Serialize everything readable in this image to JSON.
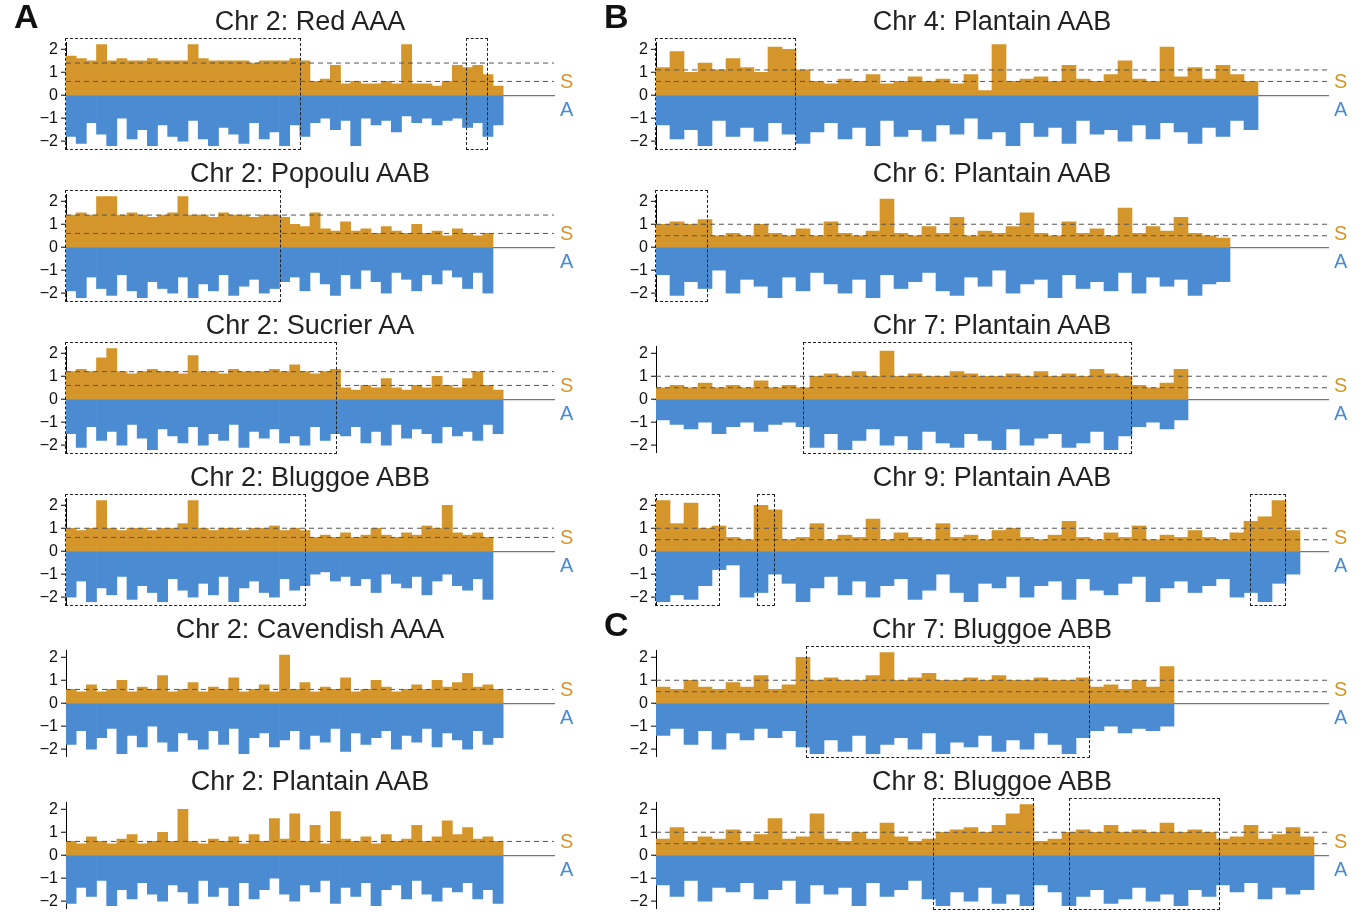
{
  "chart_data": [
    {
      "type": "bar",
      "title": "Chr 2: Red AAA",
      "annotations": [
        "A"
      ],
      "stacked": true,
      "ylim": [
        -2.3,
        2.3
      ],
      "yticks": [
        -2,
        -1,
        0,
        1,
        2
      ],
      "categories": [
        null,
        null,
        null,
        null,
        null,
        null,
        null,
        null,
        null,
        null,
        null,
        null,
        null,
        null,
        null,
        null,
        null,
        null,
        null,
        null,
        null,
        null,
        null,
        null,
        null,
        null,
        null,
        null,
        null,
        null,
        null,
        null,
        null,
        null,
        null,
        null,
        null,
        null,
        null,
        null,
        null,
        null,
        null,
        null,
        null,
        null,
        null,
        null
      ],
      "series": [
        {
          "name": "S",
          "color": "#d4962a",
          "values": [
            1.7,
            1.6,
            1.5,
            2.2,
            1.5,
            1.6,
            1.5,
            1.5,
            1.6,
            1.5,
            1.5,
            1.5,
            2.2,
            1.6,
            1.5,
            1.5,
            1.5,
            1.5,
            1.4,
            1.5,
            1.5,
            1.5,
            1.6,
            1.5,
            0.6,
            0.7,
            1.3,
            0.5,
            0.6,
            0.5,
            0.5,
            0.6,
            0.5,
            2.2,
            0.5,
            0.5,
            0.4,
            0.6,
            1.3,
            1.2,
            1.3,
            0.9,
            0.4,
            null,
            null,
            null,
            null,
            null
          ]
        },
        {
          "name": "A",
          "color": "#4a8bd1",
          "values": [
            -1.8,
            -2.1,
            -1.2,
            -1.7,
            -2.2,
            -1.0,
            -1.9,
            -1.5,
            -2.2,
            -1.3,
            -1.8,
            -2.0,
            -1.1,
            -1.9,
            -2.2,
            -1.4,
            -1.7,
            -2.1,
            -1.2,
            -1.9,
            -1.6,
            -2.2,
            -1.3,
            -1.8,
            -1.2,
            -1.0,
            -1.5,
            -1.1,
            -2.2,
            -1.0,
            -1.3,
            -1.1,
            -1.6,
            -0.9,
            -1.2,
            -1.0,
            -1.3,
            -1.1,
            -1.0,
            -1.4,
            -1.2,
            -1.8,
            -1.3,
            null,
            null,
            null,
            null,
            null
          ]
        }
      ],
      "ref_lines": [
        {
          "axis": "y",
          "value": 1.4,
          "color": "#555555",
          "line_style": "dashed"
        },
        {
          "axis": "y",
          "value": 0.6,
          "color": "#555555",
          "line_style": "dashed"
        }
      ],
      "legend": false
    },
    {
      "type": "bar",
      "title": "Chr 2: Popoulu AAB",
      "stacked": true,
      "ylim": [
        -2.3,
        2.3
      ],
      "yticks": [
        -2,
        -1,
        0,
        1,
        2
      ],
      "categories": [
        null,
        null,
        null,
        null,
        null,
        null,
        null,
        null,
        null,
        null,
        null,
        null,
        null,
        null,
        null,
        null,
        null,
        null,
        null,
        null,
        null,
        null,
        null,
        null,
        null,
        null,
        null,
        null,
        null,
        null,
        null,
        null,
        null,
        null,
        null,
        null,
        null,
        null,
        null,
        null,
        null,
        null,
        null,
        null,
        null,
        null,
        null,
        null
      ],
      "series": [
        {
          "name": "S",
          "color": "#d4962a",
          "values": [
            1.4,
            1.5,
            1.4,
            2.2,
            2.2,
            1.4,
            1.5,
            1.4,
            1.3,
            1.4,
            1.5,
            2.2,
            1.4,
            1.4,
            1.3,
            1.5,
            1.4,
            1.4,
            1.3,
            1.4,
            1.4,
            1.3,
            1.0,
            0.9,
            1.5,
            0.8,
            0.7,
            1.1,
            0.7,
            0.8,
            0.6,
            0.9,
            0.7,
            0.6,
            1.0,
            0.6,
            0.7,
            0.5,
            0.8,
            0.6,
            0.5,
            0.6,
            null,
            null,
            null,
            null,
            null,
            null
          ]
        },
        {
          "name": "A",
          "color": "#4a8bd1",
          "values": [
            -1.9,
            -2.2,
            -1.3,
            -1.8,
            -2.1,
            -1.2,
            -1.9,
            -2.2,
            -1.5,
            -1.8,
            -2.0,
            -1.3,
            -2.2,
            -1.6,
            -1.9,
            -1.2,
            -2.1,
            -1.7,
            -1.4,
            -2.0,
            -1.8,
            -1.5,
            -1.3,
            -1.9,
            -1.1,
            -1.6,
            -2.1,
            -1.2,
            -1.8,
            -1.0,
            -1.5,
            -2.0,
            -1.1,
            -1.4,
            -1.9,
            -1.2,
            -1.6,
            -1.0,
            -1.3,
            -1.8,
            -1.1,
            -2.0,
            null,
            null,
            null,
            null,
            null,
            null
          ]
        }
      ],
      "ref_lines": [
        {
          "axis": "y",
          "value": 1.4,
          "color": "#555555",
          "line_style": "dashed"
        },
        {
          "axis": "y",
          "value": 0.6,
          "color": "#555555",
          "line_style": "dashed"
        }
      ],
      "legend": false
    },
    {
      "type": "bar",
      "title": "Chr 2: Sucrier AA",
      "stacked": true,
      "ylim": [
        -2.3,
        2.3
      ],
      "yticks": [
        -2,
        -1,
        0,
        1,
        2
      ],
      "categories": [
        null,
        null,
        null,
        null,
        null,
        null,
        null,
        null,
        null,
        null,
        null,
        null,
        null,
        null,
        null,
        null,
        null,
        null,
        null,
        null,
        null,
        null,
        null,
        null,
        null,
        null,
        null,
        null,
        null,
        null,
        null,
        null,
        null,
        null,
        null,
        null,
        null,
        null,
        null,
        null,
        null,
        null,
        null,
        null,
        null,
        null,
        null,
        null
      ],
      "series": [
        {
          "name": "S",
          "color": "#d4962a",
          "values": [
            1.2,
            1.3,
            1.2,
            1.8,
            2.2,
            1.2,
            1.1,
            1.2,
            1.3,
            1.2,
            1.2,
            1.1,
            1.9,
            1.2,
            1.2,
            1.1,
            1.3,
            1.2,
            1.2,
            1.2,
            1.3,
            1.2,
            1.5,
            1.2,
            1.1,
            1.2,
            1.3,
            0.5,
            0.4,
            0.6,
            0.5,
            0.9,
            0.5,
            0.4,
            0.6,
            0.5,
            1.0,
            0.6,
            0.5,
            0.9,
            1.2,
            0.6,
            0.4,
            null,
            null,
            null,
            null,
            null
          ]
        },
        {
          "name": "A",
          "color": "#4a8bd1",
          "values": [
            -1.5,
            -2.1,
            -1.2,
            -1.8,
            -1.4,
            -2.0,
            -1.1,
            -1.7,
            -2.2,
            -1.3,
            -1.6,
            -1.9,
            -1.2,
            -2.0,
            -1.5,
            -1.8,
            -1.1,
            -2.1,
            -1.4,
            -1.7,
            -1.3,
            -1.9,
            -1.6,
            -2.0,
            -1.2,
            -1.8,
            -1.5,
            -1.6,
            -1.2,
            -1.9,
            -1.4,
            -2.0,
            -1.1,
            -1.7,
            -1.3,
            -1.5,
            -1.9,
            -1.2,
            -1.6,
            -1.4,
            -1.8,
            -1.1,
            -1.5,
            null,
            null,
            null,
            null,
            null
          ]
        }
      ],
      "ref_lines": [
        {
          "axis": "y",
          "value": 1.2,
          "color": "#555555",
          "line_style": "dashed"
        },
        {
          "axis": "y",
          "value": 0.6,
          "color": "#555555",
          "line_style": "dashed"
        }
      ],
      "legend": false
    },
    {
      "type": "bar",
      "title": "Chr 2: Bluggoe ABB",
      "stacked": true,
      "ylim": [
        -2.3,
        2.3
      ],
      "yticks": [
        -2,
        -1,
        0,
        1,
        2
      ],
      "categories": [
        null,
        null,
        null,
        null,
        null,
        null,
        null,
        null,
        null,
        null,
        null,
        null,
        null,
        null,
        null,
        null,
        null,
        null,
        null,
        null,
        null,
        null,
        null,
        null,
        null,
        null,
        null,
        null,
        null,
        null,
        null,
        null,
        null,
        null,
        null,
        null,
        null,
        null,
        null,
        null,
        null,
        null,
        null,
        null,
        null,
        null,
        null,
        null
      ],
      "series": [
        {
          "name": "S",
          "color": "#d4962a",
          "values": [
            1.0,
            0.9,
            1.0,
            2.2,
            1.0,
            0.9,
            1.0,
            1.0,
            0.9,
            1.0,
            1.0,
            1.2,
            2.2,
            1.0,
            0.9,
            1.0,
            1.0,
            0.9,
            1.0,
            1.0,
            1.1,
            0.9,
            1.0,
            0.9,
            0.6,
            0.7,
            0.6,
            0.8,
            0.6,
            0.7,
            1.0,
            0.7,
            0.6,
            0.8,
            0.7,
            1.1,
            1.0,
            2.0,
            0.8,
            0.7,
            0.8,
            0.6,
            null,
            null,
            null,
            null,
            null,
            null
          ]
        },
        {
          "name": "A",
          "color": "#4a8bd1",
          "values": [
            -2.0,
            -1.3,
            -2.2,
            -1.6,
            -1.9,
            -1.1,
            -2.1,
            -1.5,
            -1.8,
            -2.2,
            -1.2,
            -1.7,
            -2.0,
            -1.4,
            -1.9,
            -1.1,
            -2.2,
            -1.6,
            -1.3,
            -1.8,
            -2.0,
            -1.2,
            -1.7,
            -1.5,
            -1.0,
            -0.9,
            -1.3,
            -1.1,
            -1.5,
            -1.2,
            -1.8,
            -1.0,
            -1.4,
            -1.6,
            -1.1,
            -1.9,
            -1.3,
            -1.0,
            -1.5,
            -1.7,
            -1.2,
            -2.1,
            null,
            null,
            null,
            null,
            null,
            null
          ]
        }
      ],
      "ref_lines": [
        {
          "axis": "y",
          "value": 1.0,
          "color": "#555555",
          "line_style": "dashed"
        },
        {
          "axis": "y",
          "value": 0.6,
          "color": "#555555",
          "line_style": "dashed"
        }
      ],
      "legend": false
    },
    {
      "type": "bar",
      "title": "Chr 2: Cavendish AAA",
      "stacked": true,
      "ylim": [
        -2.3,
        2.3
      ],
      "yticks": [
        -2,
        -1,
        0,
        1,
        2
      ],
      "categories": [
        null,
        null,
        null,
        null,
        null,
        null,
        null,
        null,
        null,
        null,
        null,
        null,
        null,
        null,
        null,
        null,
        null,
        null,
        null,
        null,
        null,
        null,
        null,
        null,
        null,
        null,
        null,
        null,
        null,
        null,
        null,
        null,
        null,
        null,
        null,
        null,
        null,
        null,
        null,
        null,
        null,
        null,
        null,
        null,
        null,
        null,
        null,
        null
      ],
      "series": [
        {
          "name": "S",
          "color": "#d4962a",
          "values": [
            0.6,
            0.5,
            0.8,
            0.5,
            0.6,
            1.0,
            0.5,
            0.7,
            0.6,
            1.2,
            0.5,
            0.6,
            0.9,
            0.5,
            0.7,
            0.6,
            1.1,
            0.5,
            0.6,
            0.8,
            0.5,
            2.1,
            0.6,
            0.9,
            0.5,
            0.7,
            0.6,
            1.1,
            0.5,
            0.6,
            1.0,
            0.7,
            0.5,
            0.6,
            0.8,
            0.6,
            1.0,
            0.7,
            0.9,
            1.3,
            0.7,
            0.8,
            0.6,
            null,
            null,
            null,
            null,
            null
          ]
        },
        {
          "name": "A",
          "color": "#4a8bd1",
          "values": [
            -1.8,
            -1.2,
            -2.0,
            -1.5,
            -1.1,
            -2.2,
            -1.4,
            -1.9,
            -1.0,
            -1.7,
            -2.1,
            -1.3,
            -1.6,
            -2.0,
            -1.2,
            -1.8,
            -1.1,
            -2.2,
            -1.5,
            -1.3,
            -1.9,
            -1.6,
            -1.2,
            -2.0,
            -1.4,
            -1.7,
            -1.1,
            -2.1,
            -1.3,
            -1.8,
            -1.5,
            -1.2,
            -2.0,
            -1.4,
            -1.7,
            -1.1,
            -1.9,
            -1.3,
            -1.6,
            -2.0,
            -1.2,
            -1.8,
            -1.5,
            null,
            null,
            null,
            null,
            null
          ]
        }
      ],
      "ref_lines": [
        {
          "axis": "y",
          "value": 0.6,
          "color": "#555555",
          "line_style": "dashed"
        }
      ]
    },
    {
      "type": "bar",
      "title": "Chr 2: Plantain AAB",
      "stacked": true,
      "ylim": [
        -2.3,
        2.3
      ],
      "yticks": [
        -2,
        -1,
        0,
        1,
        2
      ],
      "categories": [
        null,
        null,
        null,
        null,
        null,
        null,
        null,
        null,
        null,
        null,
        null,
        null,
        null,
        null,
        null,
        null,
        null,
        null,
        null,
        null,
        null,
        null,
        null,
        null,
        null,
        null,
        null,
        null,
        null,
        null,
        null,
        null,
        null,
        null,
        null,
        null,
        null,
        null,
        null,
        null,
        null,
        null,
        null,
        null,
        null,
        null,
        null,
        null
      ],
      "series": [
        {
          "name": "S",
          "color": "#d4962a",
          "values": [
            0.6,
            0.5,
            0.8,
            0.6,
            0.5,
            0.7,
            0.9,
            0.5,
            0.6,
            1.0,
            0.6,
            2.0,
            0.6,
            0.5,
            0.7,
            0.6,
            0.8,
            0.5,
            0.9,
            0.6,
            1.6,
            0.7,
            1.8,
            0.6,
            1.3,
            0.5,
            1.9,
            0.7,
            0.6,
            0.8,
            0.5,
            0.9,
            0.6,
            0.7,
            1.3,
            0.6,
            0.8,
            1.5,
            0.9,
            1.2,
            0.7,
            0.8,
            0.6,
            null,
            null,
            null,
            null,
            null
          ]
        },
        {
          "name": "A",
          "color": "#4a8bd1",
          "values": [
            -2.1,
            -1.4,
            -1.8,
            -1.1,
            -2.2,
            -1.5,
            -1.9,
            -1.2,
            -1.7,
            -2.0,
            -1.3,
            -1.6,
            -2.1,
            -1.1,
            -1.8,
            -1.4,
            -2.2,
            -1.2,
            -1.9,
            -1.5,
            -1.0,
            -1.7,
            -2.0,
            -1.3,
            -1.6,
            -1.1,
            -2.1,
            -1.4,
            -1.8,
            -1.2,
            -2.2,
            -1.5,
            -1.3,
            -1.9,
            -1.1,
            -1.7,
            -2.0,
            -1.4,
            -1.6,
            -1.2,
            -1.9,
            -1.5,
            -2.1,
            null,
            null,
            null,
            null,
            null
          ]
        }
      ],
      "ref_lines": [
        {
          "axis": "y",
          "value": 0.6,
          "color": "#555555",
          "line_style": "dashed"
        }
      ]
    },
    {
      "type": "bar",
      "title": "Chr 4: Plantain AAB",
      "annotations": [
        "B"
      ],
      "stacked": true,
      "ylim": [
        -2.3,
        2.3
      ],
      "yticks": [
        -2,
        -1,
        0,
        1,
        2
      ],
      "categories": [
        null,
        null,
        null,
        null,
        null,
        null,
        null,
        null,
        null,
        null,
        null,
        null,
        null,
        null,
        null,
        null,
        null,
        null,
        null,
        null,
        null,
        null,
        null,
        null,
        null,
        null,
        null,
        null,
        null,
        null,
        null,
        null,
        null,
        null,
        null,
        null,
        null,
        null,
        null,
        null,
        null,
        null,
        null,
        null,
        null,
        null,
        null,
        null
      ],
      "series": [
        {
          "name": "S",
          "color": "#d4962a",
          "values": [
            1.2,
            1.9,
            1.0,
            1.4,
            1.1,
            1.6,
            1.2,
            1.0,
            2.1,
            2.0,
            1.1,
            0.6,
            0.5,
            0.7,
            0.6,
            0.9,
            0.5,
            0.6,
            0.8,
            0.6,
            0.7,
            0.5,
            0.9,
            0.2,
            2.2,
            0.6,
            0.7,
            0.8,
            0.6,
            1.3,
            0.7,
            0.6,
            0.9,
            1.5,
            0.7,
            0.6,
            2.1,
            0.8,
            1.2,
            0.7,
            1.3,
            0.9,
            0.6,
            null,
            null,
            null,
            null,
            null
          ]
        },
        {
          "name": "A",
          "color": "#4a8bd1",
          "values": [
            -1.3,
            -1.9,
            -1.5,
            -2.2,
            -1.1,
            -1.8,
            -1.4,
            -2.0,
            -1.2,
            -1.7,
            -2.1,
            -1.6,
            -1.2,
            -1.9,
            -1.4,
            -2.2,
            -1.1,
            -1.8,
            -1.5,
            -2.0,
            -1.3,
            -1.7,
            -1.0,
            -1.9,
            -1.6,
            -2.2,
            -1.2,
            -1.8,
            -1.4,
            -2.1,
            -1.1,
            -1.7,
            -1.5,
            -2.0,
            -1.3,
            -1.9,
            -1.2,
            -1.6,
            -2.1,
            -1.4,
            -1.8,
            -1.1,
            -1.5,
            null,
            null,
            null,
            null,
            null
          ]
        }
      ],
      "ref_lines": [
        {
          "axis": "y",
          "value": 1.1,
          "color": "#555555",
          "line_style": "dashed"
        },
        {
          "axis": "y",
          "value": 0.6,
          "color": "#555555",
          "line_style": "dashed"
        }
      ],
      "legend": false
    },
    {
      "type": "bar",
      "title": "Chr 6: Plantain AAB",
      "stacked": true,
      "ylim": [
        -2.3,
        2.3
      ],
      "yticks": [
        -2,
        -1,
        0,
        1,
        2
      ],
      "categories": [
        null,
        null,
        null,
        null,
        null,
        null,
        null,
        null,
        null,
        null,
        null,
        null,
        null,
        null,
        null,
        null,
        null,
        null,
        null,
        null,
        null,
        null,
        null,
        null,
        null,
        null,
        null,
        null,
        null,
        null,
        null,
        null,
        null,
        null,
        null,
        null,
        null,
        null,
        null,
        null,
        null,
        null,
        null,
        null,
        null,
        null,
        null,
        null
      ],
      "series": [
        {
          "name": "S",
          "color": "#d4962a",
          "values": [
            1.0,
            1.1,
            1.0,
            1.2,
            0.5,
            0.6,
            0.5,
            1.0,
            0.6,
            0.5,
            0.8,
            0.5,
            1.1,
            0.6,
            0.5,
            0.7,
            2.1,
            0.6,
            0.5,
            0.9,
            0.6,
            1.3,
            0.5,
            0.7,
            0.6,
            0.9,
            1.5,
            0.6,
            0.5,
            1.1,
            0.6,
            0.8,
            0.5,
            1.7,
            0.6,
            0.9,
            0.7,
            1.3,
            0.6,
            0.5,
            0.4,
            null,
            null,
            null,
            null,
            null,
            null,
            null
          ]
        },
        {
          "name": "A",
          "color": "#4a8bd1",
          "values": [
            -1.2,
            -2.1,
            -1.5,
            -1.8,
            -1.0,
            -2.0,
            -1.4,
            -1.7,
            -2.2,
            -1.3,
            -1.9,
            -1.1,
            -1.6,
            -2.0,
            -1.4,
            -2.2,
            -1.2,
            -1.8,
            -1.5,
            -1.1,
            -1.9,
            -2.1,
            -1.3,
            -1.7,
            -1.0,
            -2.0,
            -1.6,
            -1.4,
            -2.2,
            -1.2,
            -1.8,
            -1.5,
            -1.9,
            -1.1,
            -2.0,
            -1.3,
            -1.7,
            -1.4,
            -2.1,
            -1.6,
            -1.5,
            null,
            null,
            null,
            null,
            null,
            null,
            null
          ]
        }
      ],
      "ref_lines": [
        {
          "axis": "y",
          "value": 1.0,
          "color": "#555555",
          "line_style": "dashed"
        },
        {
          "axis": "y",
          "value": 0.5,
          "color": "#555555",
          "line_style": "dashed"
        }
      ],
      "legend": false
    },
    {
      "type": "bar",
      "title": "Chr 7: Plantain AAB",
      "stacked": true,
      "ylim": [
        -2.3,
        2.3
      ],
      "yticks": [
        -2,
        -1,
        0,
        1,
        2
      ],
      "categories": [
        null,
        null,
        null,
        null,
        null,
        null,
        null,
        null,
        null,
        null,
        null,
        null,
        null,
        null,
        null,
        null,
        null,
        null,
        null,
        null,
        null,
        null,
        null,
        null,
        null,
        null,
        null,
        null,
        null,
        null,
        null,
        null,
        null,
        null,
        null,
        null,
        null,
        null,
        null,
        null,
        null,
        null,
        null,
        null,
        null,
        null,
        null,
        null
      ],
      "series": [
        {
          "name": "S",
          "color": "#d4962a",
          "values": [
            0.5,
            0.6,
            0.5,
            0.7,
            0.5,
            0.6,
            0.5,
            0.8,
            0.5,
            0.6,
            0.5,
            1.0,
            1.1,
            1.0,
            1.2,
            1.0,
            2.1,
            1.0,
            1.1,
            1.0,
            1.0,
            1.2,
            1.1,
            1.0,
            1.0,
            1.1,
            1.0,
            1.2,
            1.0,
            1.1,
            1.0,
            1.3,
            1.1,
            1.0,
            0.6,
            0.5,
            0.7,
            1.3,
            null,
            null,
            null,
            null,
            null,
            null,
            null,
            null,
            null,
            null
          ]
        },
        {
          "name": "A",
          "color": "#4a8bd1",
          "values": [
            -0.9,
            -1.1,
            -1.3,
            -1.0,
            -1.5,
            -1.2,
            -1.0,
            -1.4,
            -1.1,
            -1.0,
            -1.2,
            -2.1,
            -1.5,
            -2.2,
            -1.8,
            -1.3,
            -2.0,
            -1.6,
            -2.2,
            -1.4,
            -1.9,
            -2.1,
            -1.5,
            -1.8,
            -2.2,
            -1.3,
            -2.0,
            -1.7,
            -1.5,
            -2.1,
            -1.9,
            -1.4,
            -2.2,
            -1.6,
            -1.2,
            -1.0,
            -1.3,
            -0.9,
            null,
            null,
            null,
            null,
            null,
            null,
            null,
            null,
            null,
            null
          ]
        }
      ],
      "ref_lines": [
        {
          "axis": "y",
          "value": 1.0,
          "color": "#555555",
          "line_style": "dashed"
        },
        {
          "axis": "y",
          "value": 0.5,
          "color": "#555555",
          "line_style": "dashed"
        }
      ],
      "legend": false
    },
    {
      "type": "bar",
      "title": "Chr 9: Plantain AAB",
      "stacked": true,
      "ylim": [
        -2.3,
        2.3
      ],
      "yticks": [
        -2,
        -1,
        0,
        1,
        2
      ],
      "categories": [
        null,
        null,
        null,
        null,
        null,
        null,
        null,
        null,
        null,
        null,
        null,
        null,
        null,
        null,
        null,
        null,
        null,
        null,
        null,
        null,
        null,
        null,
        null,
        null,
        null,
        null,
        null,
        null,
        null,
        null,
        null,
        null,
        null,
        null,
        null,
        null,
        null,
        null,
        null,
        null,
        null,
        null,
        null,
        null,
        null,
        null,
        null,
        null
      ],
      "series": [
        {
          "name": "S",
          "color": "#d4962a",
          "values": [
            2.2,
            1.2,
            2.1,
            1.0,
            1.1,
            0.6,
            0.5,
            2.0,
            1.8,
            0.5,
            0.6,
            1.2,
            0.5,
            0.7,
            0.6,
            1.4,
            0.5,
            0.8,
            0.6,
            0.5,
            1.2,
            0.6,
            0.7,
            0.5,
            0.9,
            1.0,
            0.6,
            0.5,
            0.7,
            1.3,
            0.6,
            0.5,
            0.8,
            0.6,
            1.1,
            0.5,
            0.7,
            0.6,
            0.9,
            0.6,
            0.5,
            0.8,
            1.3,
            1.5,
            2.2,
            0.9,
            null,
            null
          ]
        },
        {
          "name": "A",
          "color": "#4a8bd1",
          "values": [
            -2.2,
            -1.9,
            -2.1,
            -1.5,
            -0.8,
            -0.6,
            -2.0,
            -1.8,
            -1.0,
            -1.4,
            -2.2,
            -1.6,
            -1.1,
            -1.9,
            -1.3,
            -2.0,
            -1.5,
            -1.2,
            -2.1,
            -1.7,
            -1.0,
            -1.8,
            -2.2,
            -1.4,
            -1.6,
            -1.1,
            -2.0,
            -1.5,
            -1.3,
            -2.1,
            -1.2,
            -1.7,
            -1.9,
            -1.4,
            -1.1,
            -2.2,
            -1.6,
            -1.3,
            -1.8,
            -1.5,
            -1.2,
            -2.0,
            -1.8,
            -2.2,
            -1.4,
            -1.0,
            null,
            null
          ]
        }
      ],
      "ref_lines": [
        {
          "axis": "y",
          "value": 1.0,
          "color": "#555555",
          "line_style": "dashed"
        },
        {
          "axis": "y",
          "value": 0.5,
          "color": "#555555",
          "line_style": "dashed"
        }
      ],
      "legend": false
    },
    {
      "type": "bar",
      "title": "Chr 7: Bluggoe ABB",
      "annotations": [
        "C"
      ],
      "stacked": true,
      "ylim": [
        -2.3,
        2.3
      ],
      "yticks": [
        -2,
        -1,
        0,
        1,
        2
      ],
      "categories": [
        null,
        null,
        null,
        null,
        null,
        null,
        null,
        null,
        null,
        null,
        null,
        null,
        null,
        null,
        null,
        null,
        null,
        null,
        null,
        null,
        null,
        null,
        null,
        null,
        null,
        null,
        null,
        null,
        null,
        null,
        null,
        null,
        null,
        null,
        null,
        null,
        null,
        null,
        null,
        null,
        null,
        null,
        null,
        null,
        null,
        null,
        null,
        null
      ],
      "series": [
        {
          "name": "S",
          "color": "#d4962a",
          "values": [
            0.7,
            0.6,
            1.0,
            0.7,
            0.6,
            0.9,
            0.7,
            1.2,
            0.6,
            0.8,
            2.0,
            1.0,
            1.1,
            1.0,
            1.0,
            1.2,
            2.2,
            1.0,
            1.1,
            1.3,
            1.0,
            1.0,
            1.1,
            1.0,
            1.2,
            1.0,
            1.0,
            1.1,
            1.0,
            1.0,
            1.1,
            0.7,
            0.8,
            0.6,
            1.0,
            0.7,
            1.6,
            null,
            null,
            null,
            null,
            null,
            null,
            null,
            null,
            null,
            null,
            null
          ]
        },
        {
          "name": "A",
          "color": "#4a8bd1",
          "values": [
            -1.4,
            -1.1,
            -1.8,
            -1.2,
            -2.0,
            -1.3,
            -1.6,
            -1.1,
            -1.5,
            -1.2,
            -1.9,
            -2.2,
            -1.6,
            -2.1,
            -1.4,
            -2.2,
            -1.8,
            -1.5,
            -2.0,
            -1.3,
            -2.2,
            -1.7,
            -1.9,
            -1.4,
            -2.1,
            -1.6,
            -2.0,
            -1.3,
            -1.8,
            -2.2,
            -1.5,
            -1.2,
            -1.0,
            -1.3,
            -1.1,
            -1.2,
            -1.0,
            null,
            null,
            null,
            null,
            null,
            null,
            null,
            null,
            null,
            null,
            null
          ]
        }
      ],
      "ref_lines": [
        {
          "axis": "y",
          "value": 1.0,
          "color": "#555555",
          "line_style": "dashed"
        },
        {
          "axis": "y",
          "value": 0.5,
          "color": "#555555",
          "line_style": "dashed"
        }
      ],
      "legend": false
    },
    {
      "type": "bar",
      "title": "Chr 8: Bluggoe ABB",
      "stacked": true,
      "ylim": [
        -2.3,
        2.3
      ],
      "yticks": [
        -2,
        -1,
        0,
        1,
        2
      ],
      "categories": [
        null,
        null,
        null,
        null,
        null,
        null,
        null,
        null,
        null,
        null,
        null,
        null,
        null,
        null,
        null,
        null,
        null,
        null,
        null,
        null,
        null,
        null,
        null,
        null,
        null,
        null,
        null,
        null,
        null,
        null,
        null,
        null,
        null,
        null,
        null,
        null,
        null,
        null,
        null,
        null,
        null,
        null,
        null,
        null,
        null,
        null,
        null,
        null
      ],
      "series": [
        {
          "name": "S",
          "color": "#d4962a",
          "values": [
            0.7,
            1.2,
            0.6,
            0.8,
            0.7,
            1.1,
            0.6,
            0.9,
            1.6,
            0.7,
            0.8,
            1.8,
            0.7,
            0.6,
            1.0,
            0.7,
            1.4,
            0.8,
            0.6,
            0.7,
            1.0,
            1.1,
            1.2,
            1.0,
            1.3,
            1.8,
            2.2,
            0.6,
            0.7,
            1.0,
            1.1,
            1.0,
            1.3,
            1.0,
            1.1,
            1.0,
            1.4,
            1.0,
            1.1,
            1.0,
            0.7,
            0.8,
            1.3,
            0.7,
            0.9,
            1.2,
            0.8,
            null
          ]
        },
        {
          "name": "A",
          "color": "#4a8bd1",
          "values": [
            -1.3,
            -1.8,
            -1.1,
            -2.0,
            -1.4,
            -1.6,
            -1.2,
            -1.9,
            -1.5,
            -1.1,
            -2.1,
            -1.3,
            -1.7,
            -1.4,
            -2.2,
            -1.2,
            -1.8,
            -1.5,
            -1.1,
            -1.9,
            -2.2,
            -1.6,
            -2.0,
            -1.4,
            -2.1,
            -1.7,
            -2.2,
            -1.3,
            -1.6,
            -2.2,
            -1.8,
            -1.5,
            -2.1,
            -1.9,
            -1.4,
            -2.0,
            -1.7,
            -2.2,
            -1.5,
            -1.8,
            -1.3,
            -1.6,
            -1.2,
            -1.9,
            -1.4,
            -1.7,
            -1.5,
            null
          ]
        }
      ],
      "ref_lines": [
        {
          "axis": "y",
          "value": 1.0,
          "color": "#555555",
          "line_style": "dashed"
        },
        {
          "axis": "y",
          "value": 0.5,
          "color": "#555555",
          "line_style": "dashed"
        }
      ],
      "legend": false
    }
  ]
}
